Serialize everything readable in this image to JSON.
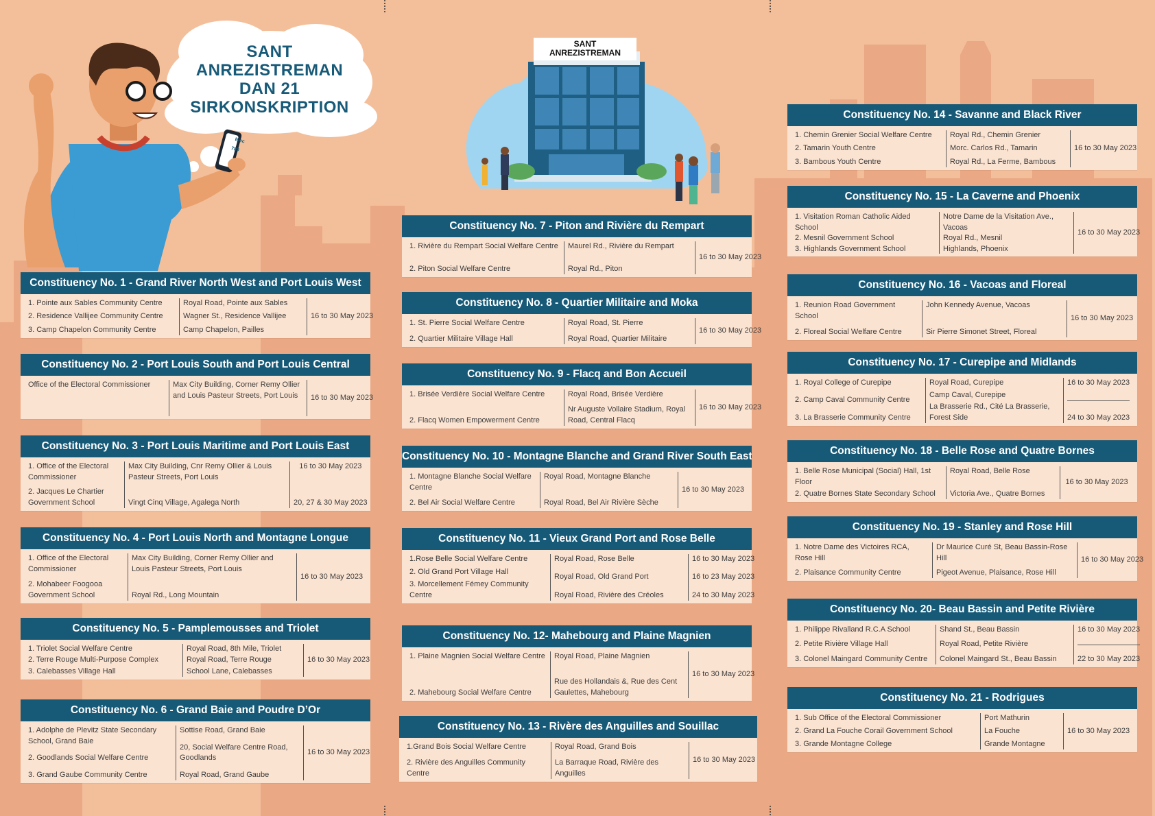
{
  "hero": {
    "title_lines": [
      "SANT",
      "ANREZISTREMAN",
      "DAN 21",
      "SIRKONSKRIPTION"
    ],
    "building_sign": [
      "SANT",
      "ANREZISTREMAN"
    ],
    "phone_text": [
      "Elec",
      "789"
    ]
  },
  "colors": {
    "header": "#175a78",
    "card": "#fbe3d1",
    "background": "#f3bf9b",
    "title": "#175a78"
  },
  "constituencies": [
    {
      "title": "Constituency No. 1 - Grand River North West and Port Louis West",
      "centres": [
        "1. Pointe aux Sables Community Centre",
        "2. Residence Vallijee Community Centre",
        "3. Camp Chapelon Community Centre"
      ],
      "addresses": [
        "Royal Road, Pointe aux Sables",
        "Wagner St., Residence Vallijee",
        "Camp Chapelon, Pailles"
      ],
      "dates": [
        "16 to 30 May 2023"
      ]
    },
    {
      "title": "Constituency No. 2 - Port Louis South and Port Louis Central",
      "centres": [
        "Office of the Electoral Commissioner"
      ],
      "addresses": [
        "Max City Building, Corner Remy Ollier and Louis Pasteur Streets, Port Louis"
      ],
      "dates": [
        "16 to 30 May 2023"
      ]
    },
    {
      "title": "Constituency No. 3 - Port Louis Maritime and Port Louis East",
      "centres": [
        "1. Office of the Electoral Commissioner",
        "2. Jacques Le Chartier Government School"
      ],
      "addresses": [
        "Max City Building, Cnr Remy Ollier & Louis Pasteur Streets, Port Louis",
        "Vingt Cinq Village, Agalega North"
      ],
      "dates": [
        "16 to 30 May 2023",
        "20, 27 & 30 May 2023"
      ]
    },
    {
      "title": "Constituency No. 4 - Port Louis North and Montagne Longue",
      "centres": [
        "1. Office of the Electoral Commissioner",
        "2. Mohabeer Foogooa Government School"
      ],
      "addresses": [
        "Max City Building, Corner Remy Ollier and Louis Pasteur Streets, Port Louis",
        "Royal Rd., Long Mountain"
      ],
      "dates": [
        "16 to 30 May 2023"
      ]
    },
    {
      "title": "Constituency No. 5 - Pamplemousses and Triolet",
      "centres": [
        "1. Triolet Social Welfare Centre",
        "2. Terre Rouge Multi-Purpose Complex",
        "3. Calebasses Village Hall"
      ],
      "addresses": [
        "Royal Road, 8th Mile, Triolet",
        "Royal Road, Terre Rouge",
        "School Lane, Calebasses"
      ],
      "dates": [
        "16 to 30 May 2023"
      ]
    },
    {
      "title": "Constituency No. 6 - Grand Baie and Poudre D’Or",
      "centres": [
        "1.  Adolphe de Plevitz State Secondary School, Grand Baie",
        "2. Goodlands Social Welfare Centre",
        "3. Grand Gaube Community Centre"
      ],
      "addresses": [
        "Sottise Road, Grand Baie",
        "20, Social Welfare Centre Road, Goodlands",
        "Royal Road, Grand Gaube"
      ],
      "dates": [
        "16 to 30 May 2023"
      ]
    },
    {
      "title": "Constituency No. 7 - Piton and Rivière du Rempart",
      "centres": [
        "1. Rivière du Rempart Social Welfare Centre",
        "2. Piton Social Welfare Centre"
      ],
      "addresses": [
        "Maurel Rd., Rivière du Rempart",
        "Royal Rd., Piton"
      ],
      "dates": [
        "16 to 30 May 2023"
      ]
    },
    {
      "title": "Constituency No. 8 - Quartier Militaire and Moka",
      "centres": [
        "1. St. Pierre Social Welfare Centre",
        "2. Quartier Militaire Village Hall"
      ],
      "addresses": [
        "Royal Road, St. Pierre",
        "Royal Road, Quartier Militaire"
      ],
      "dates": [
        "16 to 30 May 2023"
      ]
    },
    {
      "title": "Constituency No. 9 - Flacq and Bon Accueil",
      "centres": [
        "1. Brisée Verdière Social Welfare Centre",
        "2. Flacq Women Empowerment Centre"
      ],
      "addresses": [
        "Royal Road, Brisée Verdière",
        "Nr Auguste Vollaire Stadium, Royal Road, Central Flacq"
      ],
      "dates": [
        "16 to 30 May 2023"
      ]
    },
    {
      "title": "Constituency No. 10 - Montagne Blanche and Grand River South East",
      "centres": [
        "1. Montagne Blanche Social Welfare Centre",
        "2. Bel Air Social Welfare Centre"
      ],
      "addresses": [
        "Royal Road, Montagne Blanche",
        "Royal Road, Bel Air Rivière Sèche"
      ],
      "dates": [
        "16 to 30 May 2023"
      ]
    },
    {
      "title": "Constituency No. 11 - Vieux Grand Port and Rose Belle",
      "centres": [
        "1.Rose Belle Social Welfare Centre",
        "2. Old Grand Port Village Hall",
        "3. Morcellement Fémey Community Centre"
      ],
      "addresses": [
        "Royal Road, Rose Belle",
        "Royal Road, Old Grand Port",
        "Royal Road, Rivière des Créoles"
      ],
      "dates": [
        "16 to 30 May 2023",
        "16 to 23 May 2023",
        "24 to 30 May 2023"
      ]
    },
    {
      "title": "Constituency No. 12- Mahebourg and Plaine Magnien",
      "centres": [
        "1. Plaine Magnien Social Welfare Centre",
        "2. Mahebourg Social Welfare Centre"
      ],
      "addresses": [
        "Royal Road, Plaine Magnien",
        "Rue des Hollandais &, Rue des Cent Gaulettes, Mahebourg"
      ],
      "dates": [
        "16 to 30 May 2023"
      ]
    },
    {
      "title": "Constituency No. 13 - Rivère des Anguilles and Souillac",
      "centres": [
        "1.Grand Bois Social Welfare Centre",
        "2. Rivière des Anguilles Community Centre"
      ],
      "addresses": [
        "Royal Road, Grand Bois",
        "La Barraque Road, Rivière des Anguilles"
      ],
      "dates": [
        "16 to 30 May 2023"
      ]
    },
    {
      "title": "Constituency No. 14 - Savanne and Black River",
      "centres": [
        "1. Chemin Grenier Social Welfare Centre",
        "2. Tamarin Youth Centre",
        "3. Bambous Youth Centre"
      ],
      "addresses": [
        "Royal Rd.,  Chemin Grenier",
        "Morc. Carlos Rd., Tamarin",
        "Royal Rd., La Ferme, Bambous"
      ],
      "dates": [
        "16 to 30 May 2023"
      ]
    },
    {
      "title": "Constituency No. 15 - La Caverne and Phoenix",
      "centres": [
        "1. Visitation Roman Catholic Aided School",
        "2. Mesnil Government School",
        "3. Highlands Government School"
      ],
      "addresses": [
        "Notre Dame de la Visitation Ave., Vacoas",
        "Royal Rd., Mesnil",
        "Highlands, Phoenix"
      ],
      "dates": [
        "16 to 30 May 2023"
      ]
    },
    {
      "title": "Constituency No. 16 - Vacoas and Floreal",
      "centres": [
        "1. Reunion Road Government School",
        "2. Floreal Social Welfare Centre"
      ],
      "addresses": [
        "John Kennedy Avenue, Vacoas",
        "Sir Pierre Simonet Street, Floreal"
      ],
      "dates": [
        "16 to 30 May 2023"
      ]
    },
    {
      "title": "Constituency No. 17 - Curepipe and Midlands",
      "centres": [
        "1. Royal College of Curepipe",
        "2. Camp Caval Community Centre",
        "3. La Brasserie Community Centre"
      ],
      "addresses": [
        " Royal Road, Curepipe",
        "Camp Caval, Curepipe",
        "La Brasserie Rd., Cité La Brasserie, Forest Side"
      ],
      "dates": [
        "16 to 30 May 2023",
        "24 to 30 May 2023"
      ]
    },
    {
      "title": "Constituency No. 18 - Belle Rose and Quatre Bornes",
      "centres": [
        "1. Belle Rose Municipal (Social) Hall, 1st Floor",
        "2. Quatre Bornes State Secondary School"
      ],
      "addresses": [
        "Royal Road, Belle Rose",
        "Victoria Ave., Quatre Bornes"
      ],
      "dates": [
        "16 to 30 May 2023"
      ]
    },
    {
      "title": "Constituency No. 19 - Stanley and Rose Hill",
      "centres": [
        "1. Notre Dame des Victoires RCA, Rose Hill",
        "2. Plaisance Community Centre"
      ],
      "addresses": [
        "Dr Maurice Curé St, Beau Bassin-Rose Hill",
        "Pigeot Avenue, Plaisance, Rose Hill"
      ],
      "dates": [
        "16 to 30 May 2023"
      ]
    },
    {
      "title": "Constituency No. 20- Beau Bassin and Petite Rivière",
      "centres": [
        "1. Philippe Rivalland R.C.A School",
        "2. Petite Rivière Village Hall",
        "3. Colonel Maingard Community Centre"
      ],
      "addresses": [
        "Shand St., Beau Bassin",
        "Royal Road, Petite Rivière",
        "Colonel Maingard St., Beau Bassin"
      ],
      "dates": [
        "16 to 30 May 2023",
        "22 to 30 May 2023"
      ]
    },
    {
      "title": "Constituency No. 21 - Rodrigues",
      "centres": [
        "1. Sub Office of the Electoral Commissioner",
        "2. Grand La Fouche Corail Government School",
        "3. Grande Montagne College"
      ],
      "addresses": [
        "Port Mathurin",
        "La Fouche",
        "Grande Montagne"
      ],
      "dates": [
        "16 to 30 May 2023"
      ]
    }
  ]
}
